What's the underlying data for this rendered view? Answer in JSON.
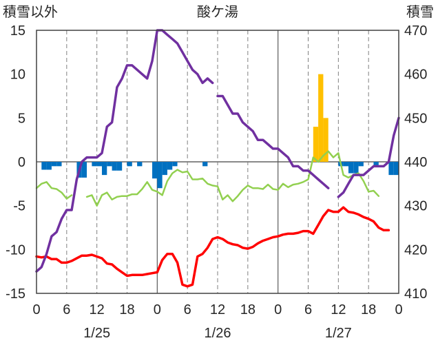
{
  "chart_data": {
    "type": "line",
    "title": "酸ケ湯",
    "left_axis_label": "積雪以外",
    "right_axis_label": "積雪",
    "left_axis": {
      "min": -15,
      "max": 15,
      "ticks": [
        -15,
        -10,
        -5,
        0,
        5,
        10,
        15
      ]
    },
    "right_axis": {
      "min": 410,
      "max": 470,
      "ticks": [
        410,
        420,
        430,
        440,
        450,
        460,
        470
      ]
    },
    "x_axis": {
      "hours_total": 72,
      "hour_tick_labels": [
        {
          "h": 0,
          "label": "0"
        },
        {
          "h": 6,
          "label": "6"
        },
        {
          "h": 12,
          "label": "12"
        },
        {
          "h": 18,
          "label": "18"
        },
        {
          "h": 24,
          "label": "0"
        },
        {
          "h": 30,
          "label": "6"
        },
        {
          "h": 36,
          "label": "12"
        },
        {
          "h": 42,
          "label": "18"
        },
        {
          "h": 48,
          "label": "0"
        },
        {
          "h": 54,
          "label": "6"
        },
        {
          "h": 60,
          "label": "12"
        },
        {
          "h": 66,
          "label": "18"
        },
        {
          "h": 72,
          "label": "0"
        }
      ],
      "date_labels": [
        {
          "h": 12,
          "label": "1/25"
        },
        {
          "h": 36,
          "label": "1/26"
        },
        {
          "h": 60,
          "label": "1/27"
        }
      ],
      "day_boundaries": [
        24,
        48
      ],
      "dashed_gridlines": [
        6,
        12,
        18,
        30,
        36,
        42,
        54,
        60,
        66
      ]
    },
    "series": [
      {
        "name": "",
        "type": "bar",
        "axis": "left",
        "color": "#0070C0",
        "points": [
          [
            1,
            -0.9
          ],
          [
            2,
            -0.9
          ],
          [
            3,
            -0.5
          ],
          [
            4,
            -0.5
          ],
          [
            8,
            -1.8
          ],
          [
            9,
            -1.8
          ],
          [
            11,
            -0.5
          ],
          [
            12,
            -0.5
          ],
          [
            13,
            -1.5
          ],
          [
            14,
            -0.5
          ],
          [
            15,
            -1.0
          ],
          [
            16,
            -1.0
          ],
          [
            18,
            -0.5
          ],
          [
            20,
            -0.5
          ],
          [
            23,
            -1.9
          ],
          [
            24,
            -3.0
          ],
          [
            25,
            -1.5
          ],
          [
            26,
            -0.9
          ],
          [
            27,
            -0.5
          ],
          [
            33,
            -0.5
          ],
          [
            60,
            -0.5
          ],
          [
            61,
            -0.5
          ],
          [
            62,
            -1.3
          ],
          [
            63,
            -1.3
          ],
          [
            64,
            -0.5
          ],
          [
            67,
            -0.5
          ],
          [
            70,
            -1.5
          ],
          [
            71,
            -1.5
          ]
        ]
      },
      {
        "name": "",
        "type": "bar",
        "axis": "left",
        "color": "#FFC000",
        "points": [
          [
            55,
            4.0
          ],
          [
            56,
            10.0
          ],
          [
            57,
            5.0
          ]
        ]
      },
      {
        "name": "",
        "type": "line",
        "axis": "left",
        "color": "#92D050",
        "segments": [
          [
            [
              0,
              -3.0
            ],
            [
              1,
              -2.5
            ],
            [
              2,
              -2.3
            ],
            [
              3,
              -3.0
            ],
            [
              4,
              -3.1
            ],
            [
              5,
              -3.5
            ],
            [
              6,
              -4.2
            ],
            [
              7,
              -3.8
            ]
          ],
          [
            [
              10,
              -4.0
            ],
            [
              11,
              -3.8
            ],
            [
              12,
              -5.0
            ],
            [
              13,
              -3.8
            ],
            [
              14,
              -3.5
            ],
            [
              15,
              -4.3
            ],
            [
              16,
              -4.0
            ],
            [
              17,
              -3.9
            ],
            [
              18,
              -3.9
            ],
            [
              19,
              -3.7
            ],
            [
              20,
              -3.7
            ],
            [
              21,
              -3.1
            ],
            [
              22,
              -2.3
            ],
            [
              23,
              -3.2
            ],
            [
              24,
              -3.4
            ],
            [
              25,
              -3.8
            ],
            [
              26,
              -2.2
            ],
            [
              27,
              -1.3
            ],
            [
              28,
              -0.9
            ],
            [
              29,
              -1.2
            ],
            [
              30,
              -1.1
            ],
            [
              31,
              -2.0
            ],
            [
              32,
              -2.0
            ],
            [
              33,
              -1.9
            ],
            [
              34,
              -2.5
            ],
            [
              35,
              -2.7
            ],
            [
              36,
              -2.8
            ],
            [
              37,
              -4.3
            ],
            [
              38,
              -3.8
            ],
            [
              39,
              -4.5
            ],
            [
              40,
              -3.9
            ],
            [
              41,
              -3.2
            ],
            [
              42,
              -2.7
            ],
            [
              43,
              -3.0
            ],
            [
              44,
              -3.0
            ],
            [
              45,
              -3.1
            ],
            [
              46,
              -2.6
            ],
            [
              47,
              -3.1
            ],
            [
              48,
              -3.2
            ],
            [
              49,
              -2.5
            ],
            [
              50,
              -2.9
            ],
            [
              51,
              -2.6
            ],
            [
              52,
              -2.5
            ],
            [
              53,
              -2.3
            ],
            [
              54,
              -2.0
            ],
            [
              55,
              0.5
            ],
            [
              56,
              0.0
            ],
            [
              57,
              0.7
            ],
            [
              58,
              1.2
            ],
            [
              59,
              0.5
            ],
            [
              60,
              1.0
            ],
            [
              61,
              -1.5
            ],
            [
              62,
              -1.8
            ],
            [
              63,
              -1.5
            ],
            [
              64,
              -1.3
            ],
            [
              65,
              -2.2
            ],
            [
              66,
              -3.4
            ],
            [
              67,
              -3.3
            ],
            [
              68,
              -3.9
            ]
          ]
        ]
      },
      {
        "name": "",
        "type": "line",
        "axis": "left",
        "color": "#FF0000",
        "segments": [
          [
            [
              0,
              -10.8
            ],
            [
              1,
              -10.9
            ],
            [
              2,
              -10.8
            ],
            [
              3,
              -11.1
            ],
            [
              4,
              -11.1
            ],
            [
              5,
              -11.5
            ],
            [
              6,
              -11.5
            ],
            [
              7,
              -11.3
            ],
            [
              8,
              -11.0
            ],
            [
              9,
              -10.7
            ],
            [
              10,
              -10.7
            ],
            [
              11,
              -10.6
            ],
            [
              12,
              -10.8
            ],
            [
              13,
              -11.0
            ],
            [
              14,
              -11.6
            ],
            [
              15,
              -11.7
            ],
            [
              16,
              -12.2
            ],
            [
              17,
              -12.6
            ],
            [
              18,
              -13.0
            ],
            [
              19,
              -12.9
            ],
            [
              20,
              -12.9
            ],
            [
              21,
              -12.9
            ],
            [
              22,
              -12.8
            ],
            [
              23,
              -12.7
            ],
            [
              24,
              -12.6
            ],
            [
              25,
              -11.2
            ],
            [
              26,
              -10.5
            ],
            [
              27,
              -10.5
            ],
            [
              28,
              -11.5
            ],
            [
              29,
              -14.0
            ],
            [
              30,
              -14.2
            ],
            [
              31,
              -14.0
            ],
            [
              32,
              -10.8
            ],
            [
              33,
              -10.5
            ],
            [
              34,
              -9.8
            ],
            [
              35,
              -8.8
            ],
            [
              36,
              -8.6
            ],
            [
              37,
              -8.8
            ],
            [
              38,
              -9.2
            ],
            [
              39,
              -9.4
            ],
            [
              40,
              -9.5
            ],
            [
              41,
              -9.8
            ],
            [
              42,
              -9.9
            ],
            [
              43,
              -9.7
            ],
            [
              44,
              -9.3
            ],
            [
              45,
              -9.0
            ],
            [
              46,
              -8.8
            ],
            [
              47,
              -8.6
            ],
            [
              48,
              -8.5
            ],
            [
              49,
              -8.3
            ],
            [
              50,
              -8.2
            ],
            [
              51,
              -8.2
            ],
            [
              52,
              -8.1
            ],
            [
              53,
              -7.9
            ],
            [
              54,
              -7.9
            ],
            [
              55,
              -8.2
            ],
            [
              56,
              -7.2
            ],
            [
              57,
              -6.2
            ],
            [
              58,
              -5.5
            ],
            [
              59,
              -5.7
            ],
            [
              60,
              -5.7
            ],
            [
              61,
              -5.2
            ],
            [
              62,
              -5.7
            ],
            [
              63,
              -5.8
            ],
            [
              64,
              -6.0
            ],
            [
              65,
              -6.3
            ],
            [
              66,
              -6.5
            ],
            [
              67,
              -6.8
            ],
            [
              68,
              -7.5
            ],
            [
              69,
              -7.8
            ],
            [
              70,
              -7.8
            ]
          ]
        ]
      },
      {
        "name": "",
        "type": "line",
        "axis": "right",
        "color": "#7030A0",
        "segments": [
          [
            [
              0,
              415
            ],
            [
              1,
              416
            ],
            [
              2,
              419
            ],
            [
              3,
              423
            ],
            [
              4,
              424
            ],
            [
              5,
              427
            ],
            [
              6,
              429
            ],
            [
              7,
              429
            ],
            [
              8,
              436
            ],
            [
              9,
              440
            ],
            [
              10,
              441
            ],
            [
              11,
              441
            ],
            [
              12,
              441
            ],
            [
              13,
              442
            ],
            [
              14,
              448
            ],
            [
              15,
              449
            ],
            [
              16,
              457
            ],
            [
              17,
              459
            ],
            [
              18,
              462
            ],
            [
              19,
              462
            ],
            [
              20,
              461
            ],
            [
              21,
              460
            ],
            [
              22,
              459
            ],
            [
              23,
              463
            ],
            [
              24,
              470
            ],
            [
              25,
              470
            ],
            [
              26,
              469
            ],
            [
              27,
              468
            ],
            [
              28,
              467
            ],
            [
              29,
              465
            ],
            [
              30,
              463
            ],
            [
              31,
              461
            ],
            [
              32,
              460
            ],
            [
              33,
              458
            ],
            [
              34,
              459
            ],
            [
              35,
              458
            ]
          ],
          [
            [
              36,
              455
            ],
            [
              37,
              455
            ],
            [
              38,
              453
            ],
            [
              39,
              451
            ],
            [
              40,
              451
            ],
            [
              41,
              449
            ],
            [
              42,
              448
            ],
            [
              43,
              447
            ],
            [
              44,
              445
            ],
            [
              45,
              445
            ],
            [
              46,
              444
            ],
            [
              47,
              443
            ],
            [
              48,
              443
            ],
            [
              49,
              442
            ],
            [
              50,
              441
            ],
            [
              51,
              439
            ],
            [
              52,
              439
            ],
            [
              53,
              438
            ],
            [
              54,
              438
            ],
            [
              55,
              437
            ],
            [
              56,
              436
            ],
            [
              57,
              435
            ],
            [
              58,
              434
            ]
          ],
          [
            [
              60,
              432
            ],
            [
              61,
              433
            ],
            [
              62,
              435
            ],
            [
              63,
              437
            ],
            [
              64,
              437
            ],
            [
              65,
              437
            ],
            [
              66,
              438
            ],
            [
              67,
              439
            ],
            [
              68,
              439
            ],
            [
              69,
              439
            ],
            [
              70,
              440
            ],
            [
              71,
              446
            ],
            [
              72,
              450
            ]
          ]
        ]
      }
    ]
  }
}
